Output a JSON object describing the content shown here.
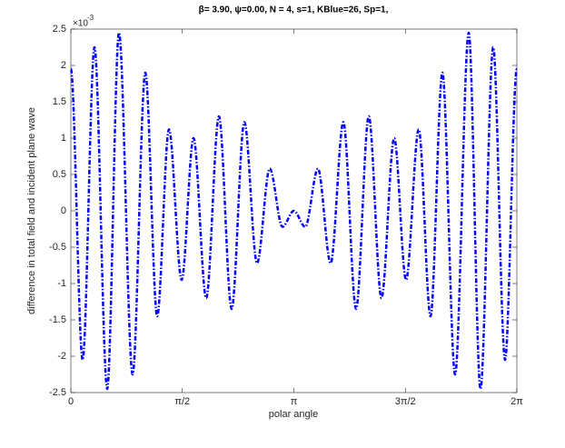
{
  "chart_data": {
    "type": "line",
    "title": "β= 3.90, ψ=0.00, N = 4, s=1, KBlue=26, Sp=1,",
    "x_label": "polar angle",
    "y_label": "difference in total field and incident plane wave",
    "y_exponent_base": "×10",
    "y_exponent": "-3",
    "x": [
      0,
      0.166,
      0.333,
      0.512,
      0.678,
      0.87,
      1.049,
      1.216,
      1.382,
      1.561,
      1.728,
      1.907,
      2.086,
      2.265,
      2.444,
      2.623,
      2.802,
      2.981,
      3.1416,
      3.302,
      3.481,
      3.66,
      3.839,
      4.018,
      4.197,
      4.376,
      4.555,
      4.722,
      4.901,
      5.067,
      5.234,
      5.413,
      5.605,
      5.771,
      5.95,
      6.117,
      6.283
    ],
    "values": [
      1.95,
      -2.05,
      2.25,
      -2.45,
      2.45,
      -2.25,
      1.9,
      -1.45,
      1.12,
      -0.95,
      1.0,
      -1.2,
      1.3,
      -1.35,
      1.22,
      -0.72,
      0.58,
      -0.22,
      0.0,
      -0.22,
      0.58,
      -0.72,
      1.22,
      -1.35,
      1.3,
      -1.2,
      1.0,
      -0.95,
      1.12,
      -1.45,
      1.9,
      -2.25,
      2.45,
      -2.45,
      2.25,
      -2.05,
      1.95
    ],
    "color": "#0000ff",
    "xlim": [
      0,
      6.2832
    ],
    "xticks": [
      0,
      {
        "value": 1.5708,
        "label": "π/2"
      },
      {
        "value": 3.1416,
        "label": "π"
      },
      {
        "value": 4.7124,
        "label": "3π/2"
      },
      {
        "value": 6.2832,
        "label": "2π"
      }
    ],
    "ylim": [
      -2.5,
      2.5
    ],
    "yticks": [
      -2.5,
      -2,
      -1.5,
      -1,
      -0.5,
      0,
      0.5,
      1,
      1.5,
      2,
      2.5
    ]
  }
}
